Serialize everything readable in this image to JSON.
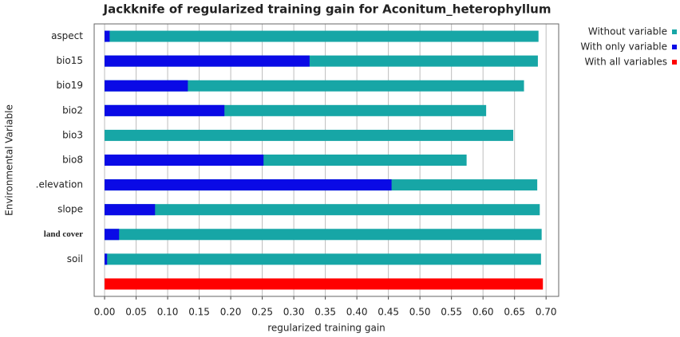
{
  "chart_data": {
    "type": "bar",
    "orientation": "horizontal",
    "overlap": true,
    "title": "Jackknife of regularized training gain for Aconitum_heterophyllum",
    "x_label": "regularized training gain",
    "y_label": "Environmental Variable",
    "categories": [
      "aspect",
      "bio15",
      "bio19",
      "bio2",
      "bio3",
      "bio8",
      ".elevation",
      "slope",
      "land cover",
      "soil",
      null
    ],
    "series": [
      {
        "name": "Without variable",
        "color": "#17a6a6",
        "values": [
          0.688,
          0.687,
          0.665,
          0.605,
          0.648,
          0.574,
          0.686,
          0.69,
          0.693,
          0.692,
          null
        ]
      },
      {
        "name": "With only variable",
        "color": "#0a0ae6",
        "values": [
          0.008,
          0.325,
          0.132,
          0.19,
          0.0,
          0.252,
          0.455,
          0.08,
          0.023,
          0.004,
          null
        ]
      },
      {
        "name": "With all variables",
        "color": "#ff0000",
        "values": [
          null,
          null,
          null,
          null,
          null,
          null,
          null,
          null,
          null,
          null,
          0.695
        ]
      }
    ],
    "xlim": [
      -0.0165,
      0.72
    ],
    "xticks": [
      {
        "value": 0,
        "label": "0.00"
      },
      {
        "value": 0.05,
        "label": "0.05"
      },
      {
        "value": 0.1,
        "label": "0.10"
      },
      {
        "value": 0.15,
        "label": "0.15"
      },
      {
        "value": 0.2,
        "label": "0.20"
      },
      {
        "value": 0.25,
        "label": "0.25"
      },
      {
        "value": 0.3,
        "label": "0.30"
      },
      {
        "value": 0.35,
        "label": "0.35"
      },
      {
        "value": 0.4,
        "label": "0.40"
      },
      {
        "value": 0.45,
        "label": "0.45"
      },
      {
        "value": 0.5,
        "label": "0.50"
      },
      {
        "value": 0.55,
        "label": "0.55"
      },
      {
        "value": 0.6,
        "label": "0.60"
      },
      {
        "value": 0.65,
        "label": "0.65"
      },
      {
        "value": 0.7,
        "label": "0.70"
      }
    ],
    "grid": true,
    "legend": "top-right"
  }
}
